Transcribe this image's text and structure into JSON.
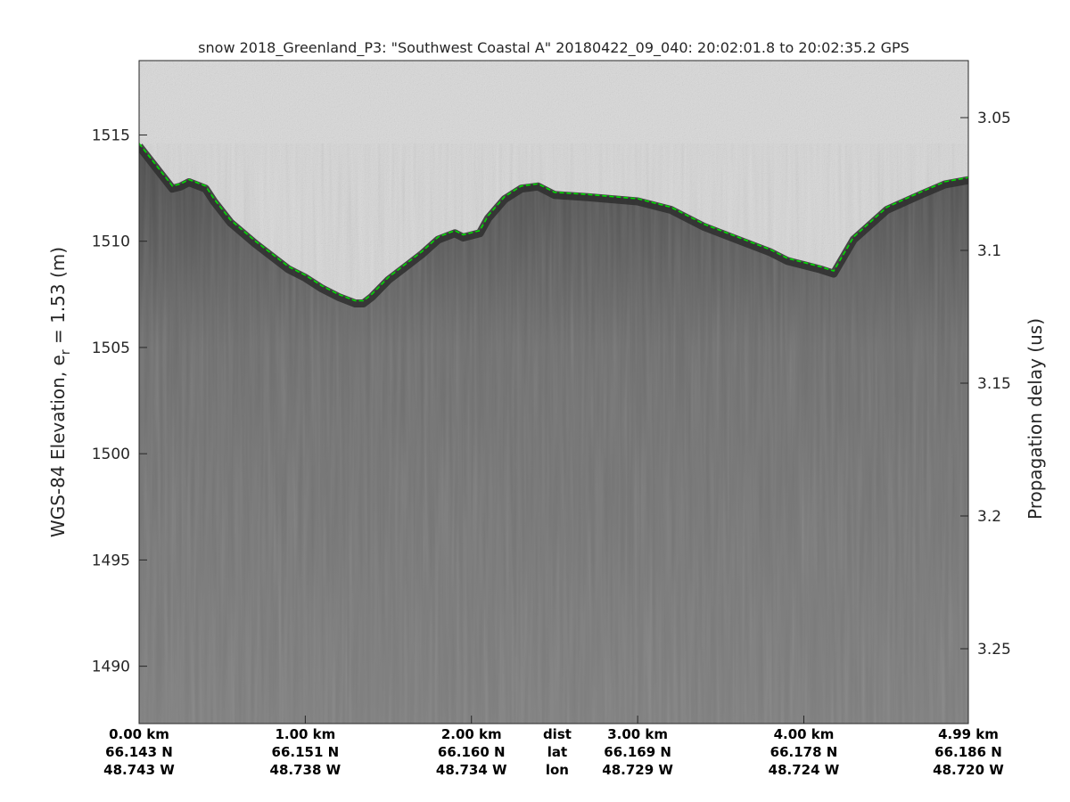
{
  "chart_data": {
    "type": "heatmap",
    "title": "snow 2018_Greenland_P3: \"Southwest Coastal A\"  20180422_09_040: 20:02:01.8 to 20:02:35.2 GPS",
    "ylabel_main": "WGS-84 Elevation, e",
    "ylabel_sub": "r",
    "ylabel_tail": " = 1.53 (m)",
    "y2label": "Propagation delay (us)",
    "colormap": "gray",
    "grid": false,
    "xlim_km": [
      0,
      4.99
    ],
    "ylim": [
      1487.3,
      1518.5
    ],
    "y_ticks": [
      1490,
      1495,
      1500,
      1505,
      1510,
      1515
    ],
    "y_tick_labels": [
      "1490",
      "1495",
      "1500",
      "1505",
      "1510",
      "1515"
    ],
    "y2_ticks": [
      3.05,
      3.1,
      3.15,
      3.2,
      3.25
    ],
    "y2_tick_labels": [
      "3.05",
      "3.1",
      "3.15",
      "3.2",
      "3.25"
    ],
    "x_ticks_km": [
      0,
      1,
      2,
      3,
      4,
      4.99
    ],
    "x_tick_dist": [
      "0.00 km",
      "1.00 km",
      "2.00 km",
      "3.00 km",
      "4.00 km",
      "4.99 km"
    ],
    "x_tick_lat": [
      "66.143 N",
      "66.151 N",
      "66.160 N",
      "66.169 N",
      "66.178 N",
      "66.186 N"
    ],
    "x_tick_lon": [
      "48.743 W",
      "48.738 W",
      "48.734 W",
      "48.729 W",
      "48.724 W",
      "48.720 W"
    ],
    "row_labels": [
      "dist",
      "lat",
      "lon"
    ],
    "row_label_pos_km": 2.5,
    "surface_series": {
      "name": "",
      "color": "#00dd00",
      "x_km": [
        0,
        0.1,
        0.2,
        0.25,
        0.3,
        0.4,
        0.45,
        0.55,
        0.7,
        0.9,
        1.0,
        1.1,
        1.2,
        1.3,
        1.35,
        1.4,
        1.5,
        1.6,
        1.7,
        1.8,
        1.9,
        1.95,
        2.05,
        2.1,
        2.2,
        2.3,
        2.4,
        2.5,
        2.7,
        3.0,
        3.2,
        3.4,
        3.6,
        3.8,
        3.9,
        4.0,
        4.1,
        4.18,
        4.3,
        4.5,
        4.7,
        4.85,
        4.99
      ],
      "elev_m": [
        1514.6,
        1513.6,
        1512.6,
        1512.7,
        1512.9,
        1512.6,
        1512.0,
        1511.0,
        1510.0,
        1508.8,
        1508.4,
        1507.9,
        1507.5,
        1507.2,
        1507.2,
        1507.5,
        1508.3,
        1508.9,
        1509.5,
        1510.2,
        1510.5,
        1510.3,
        1510.5,
        1511.2,
        1512.1,
        1512.6,
        1512.7,
        1512.3,
        1512.2,
        1512.0,
        1511.6,
        1510.8,
        1510.2,
        1509.6,
        1509.2,
        1509.0,
        1508.8,
        1508.6,
        1510.2,
        1511.6,
        1512.3,
        1512.8,
        1513.0
      ]
    }
  }
}
